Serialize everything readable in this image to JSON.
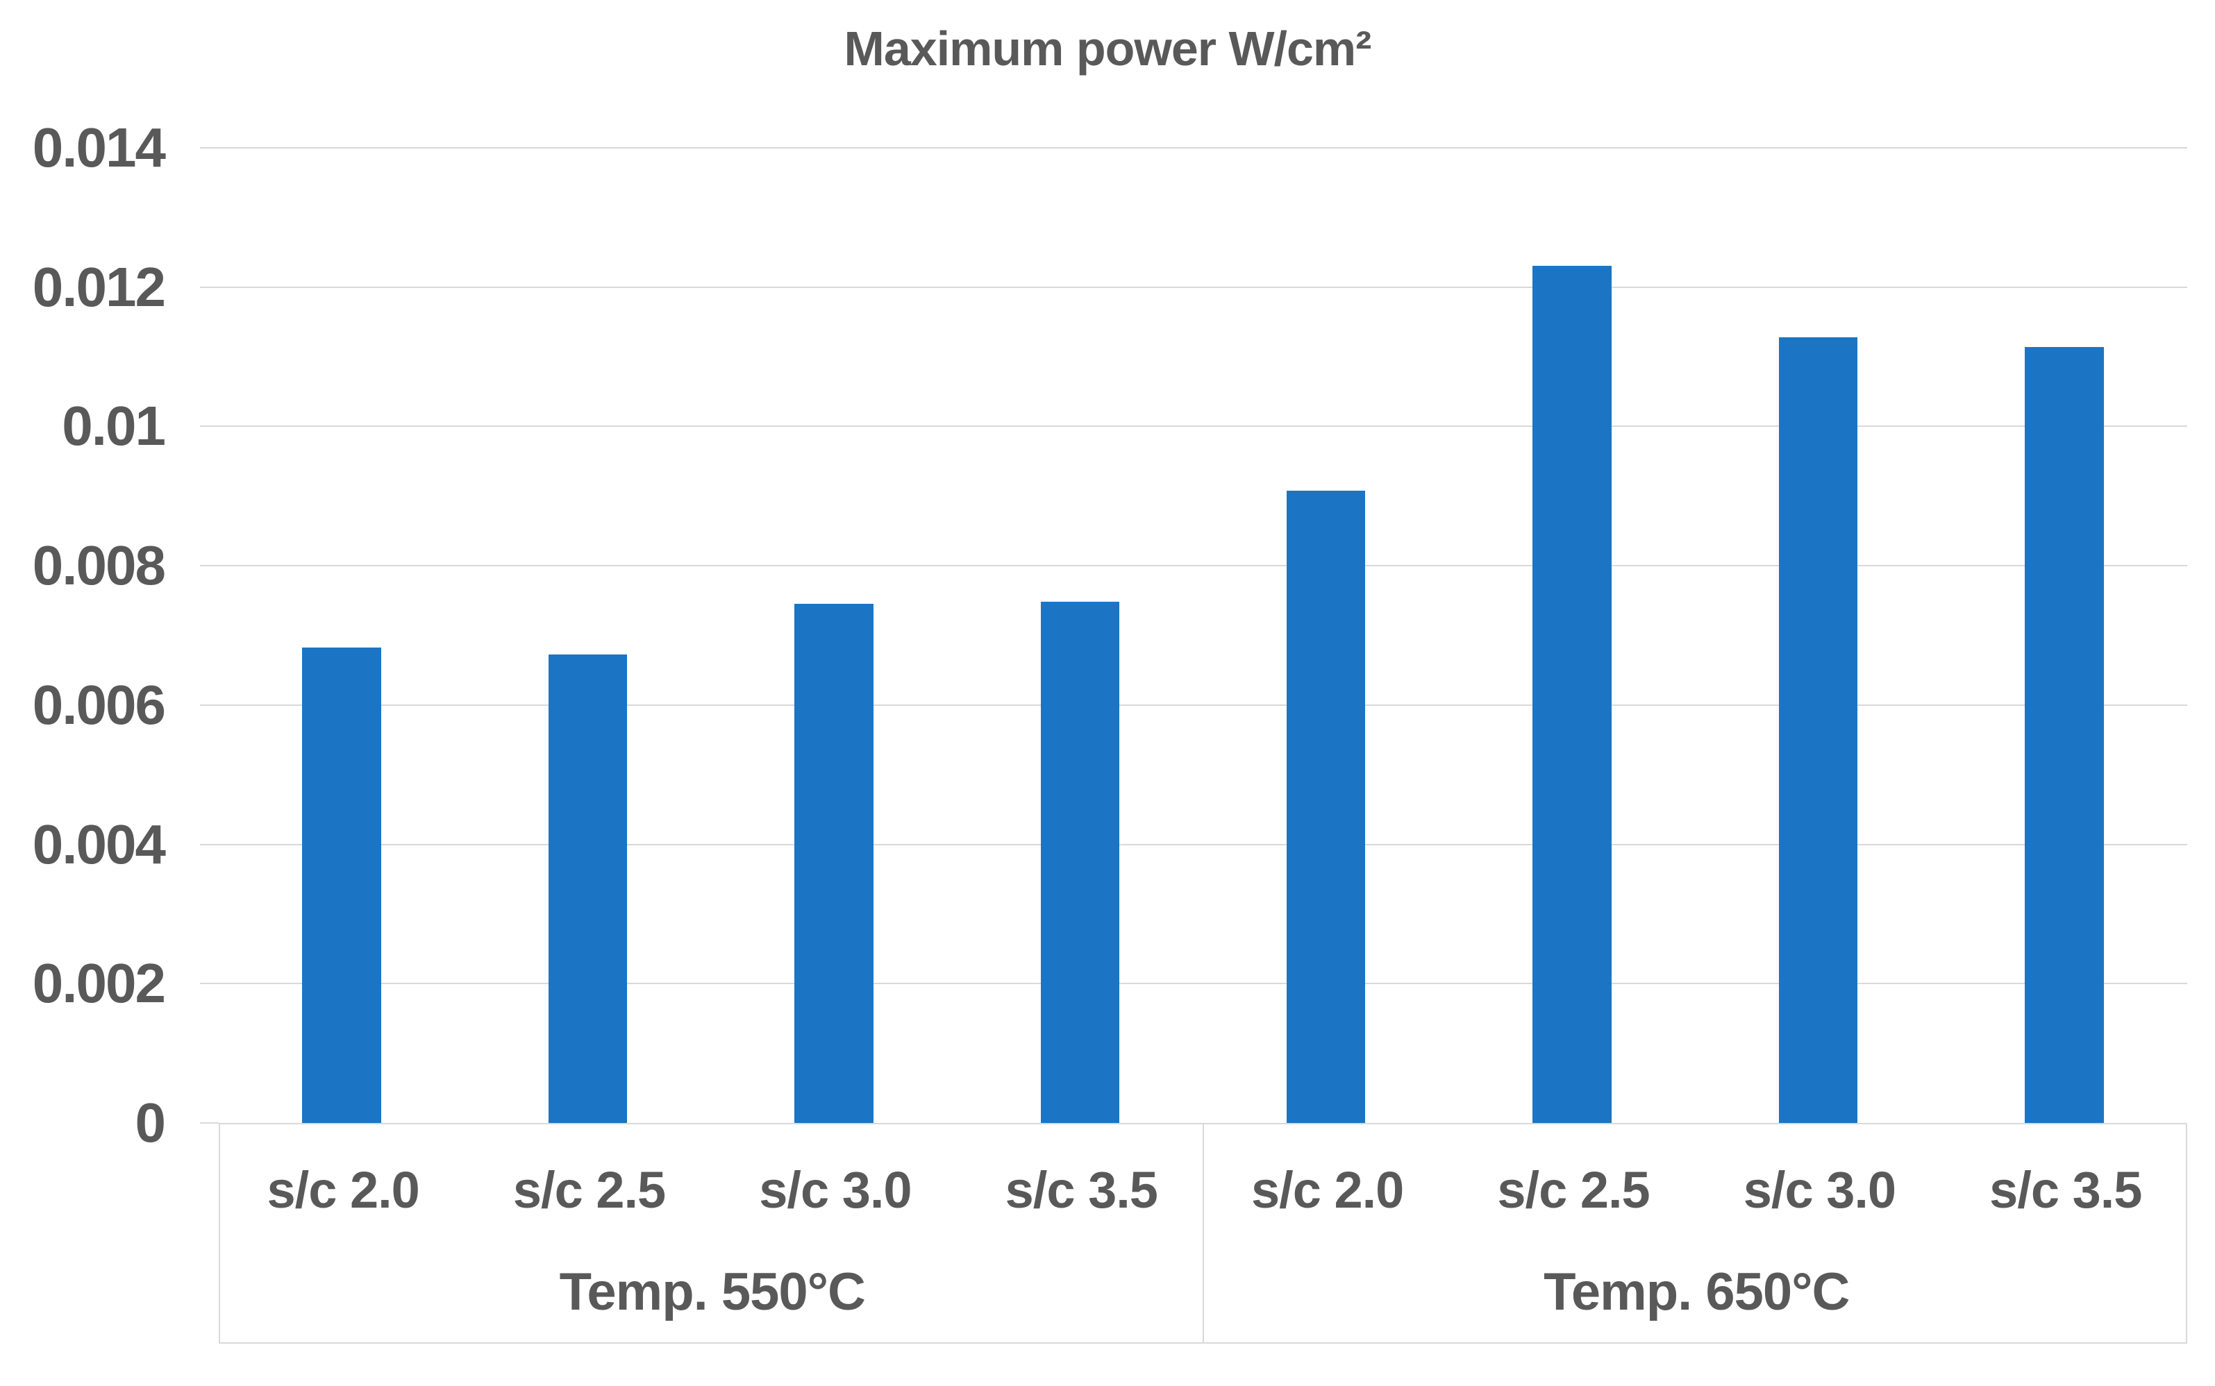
{
  "title": "Maximum power W/cm²",
  "colors": {
    "bar": "#1B75C4",
    "text": "#595959",
    "grid": "#D9D9D9",
    "background": "#FFFFFF"
  },
  "chart_data": {
    "type": "bar",
    "title": "Maximum power W/cm²",
    "xlabel": "",
    "ylabel": "",
    "ylim": [
      0,
      0.014
    ],
    "ytick_interval": 0.002,
    "ytick_labels_top_to_bottom": [
      "0.014",
      "0.012",
      "0.01",
      "0.008",
      "0.006",
      "0.004",
      "0.002",
      "0"
    ],
    "grid": "horizontal",
    "legend": "none",
    "bar_color": "#1B75C4",
    "groups": [
      {
        "label": "Temp. 550°C",
        "categories": [
          "s/c 2.0",
          "s/c 2.5",
          "s/c 3.0",
          "s/c 3.5"
        ],
        "values": [
          0.00683,
          0.00673,
          0.00745,
          0.00748
        ]
      },
      {
        "label": "Temp. 650°C",
        "categories": [
          "s/c 2.0",
          "s/c 2.5",
          "s/c 3.0",
          "s/c 3.5"
        ],
        "values": [
          0.00908,
          0.01231,
          0.01128,
          0.01114
        ]
      }
    ]
  }
}
